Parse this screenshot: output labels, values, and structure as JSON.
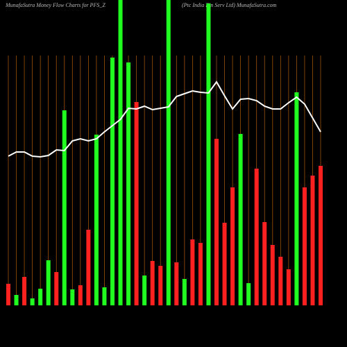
{
  "chart_data": {
    "type": "bar",
    "title": "MunafaSutra  Money Flow  Charts for PFS_Z",
    "subtitle": "(Ptc India Fin Serv Ltd) MunafaSutra.com",
    "ylim": [
      0,
      440
    ],
    "series": [
      {
        "name": "Money Flow",
        "colors": [
          "#ff2020",
          "#20ff20",
          "#ff2020",
          "#20ff20",
          "#20ff20",
          "#20ff20",
          "#ff2020",
          "#20ff20",
          "#20ff20",
          "#ff2020",
          "#ff2020",
          "#20ff20",
          "#20ff20",
          "#20ff20",
          "#20ff20",
          "#20ff20",
          "#ff2020",
          "#20ff20",
          "#ff2020",
          "#ff2020",
          "#20ff20",
          "#ff2020",
          "#20ff20",
          "#ff2020",
          "#ff2020",
          "#20ff20",
          "#ff2020",
          "#ff2020",
          "#ff2020",
          "#20ff20",
          "#20ff20",
          "#ff2020",
          "#ff2020",
          "#ff2020",
          "#ff2020",
          "#ff2020",
          "#20ff20",
          "#ff2020",
          "#ff2020",
          "#ff2020"
        ],
        "values": [
          31,
          15,
          41,
          10,
          24,
          65,
          48,
          281,
          23,
          29,
          109,
          246,
          26,
          357,
          460,
          350,
          293,
          43,
          64,
          57,
          460,
          62,
          38,
          95,
          90,
          435,
          240,
          119,
          170,
          247,
          32,
          197,
          120,
          87,
          70,
          52,
          307,
          170,
          187,
          201
        ]
      },
      {
        "name": "Price",
        "type": "line",
        "color": "#ffffff",
        "values": [
          215,
          221,
          221,
          215,
          214,
          216,
          224,
          223,
          237,
          240,
          237,
          240,
          250,
          259,
          268,
          284,
          283,
          287,
          282,
          284,
          286,
          301,
          305,
          309,
          307,
          306,
          322,
          302,
          283,
          297,
          298,
          295,
          287,
          283,
          283,
          292,
          300,
          290,
          270,
          250
        ]
      }
    ]
  }
}
